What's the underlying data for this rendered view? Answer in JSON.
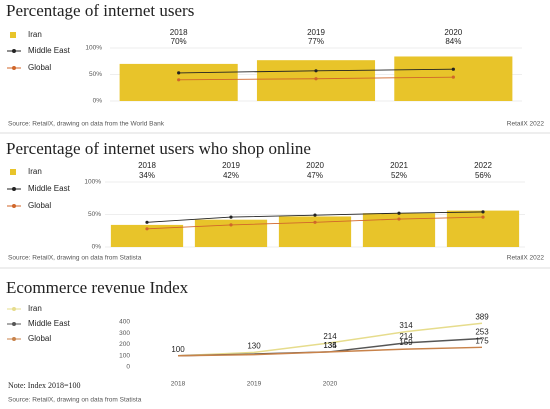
{
  "chart_data": [
    {
      "type": "bar",
      "title": "Percentage of internet users",
      "categories": [
        "2018",
        "2019",
        "2020"
      ],
      "series": [
        {
          "name": "Iran",
          "type": "bar",
          "color": "#e8c42a",
          "values": [
            70,
            77,
            84
          ],
          "value_labels": [
            "70%",
            "77%",
            "84%"
          ]
        },
        {
          "name": "Middle East",
          "type": "line",
          "color": "#222222",
          "values": [
            53,
            57,
            60
          ]
        },
        {
          "name": "Global",
          "type": "line",
          "color": "#d0662a",
          "values": [
            40,
            42,
            45
          ]
        }
      ],
      "ylim": [
        0,
        100
      ],
      "yticks": [
        {
          "value": 0,
          "label": "0%"
        },
        {
          "value": 50,
          "label": "50%"
        },
        {
          "value": 100,
          "label": "100%"
        }
      ],
      "grid": true,
      "source": "Source: RetailX, drawing on data from the World Bank",
      "credit": "RetailX 2022"
    },
    {
      "type": "bar",
      "title": "Percentage of internet users who shop online",
      "categories": [
        "2018",
        "2019",
        "2020",
        "2021",
        "2022"
      ],
      "series": [
        {
          "name": "Iran",
          "type": "bar",
          "color": "#e8c42a",
          "values": [
            34,
            42,
            47,
            52,
            56
          ],
          "value_labels": [
            "34%",
            "42%",
            "47%",
            "52%",
            "56%"
          ]
        },
        {
          "name": "Middle East",
          "type": "line",
          "color": "#222222",
          "values": [
            38,
            46,
            49,
            52,
            54
          ]
        },
        {
          "name": "Global",
          "type": "line",
          "color": "#d0662a",
          "values": [
            28,
            34,
            38,
            43,
            46
          ]
        }
      ],
      "ylim": [
        0,
        100
      ],
      "yticks": [
        {
          "value": 0,
          "label": "0%"
        },
        {
          "value": 50,
          "label": "50%"
        },
        {
          "value": 100,
          "label": "100%"
        }
      ],
      "grid": true,
      "source": "Source: RetailX, drawing on data from Statista",
      "credit": "RetailX 2022"
    },
    {
      "type": "line",
      "title": "Ecommerce revenue Index",
      "categories": [
        "2018",
        "2019",
        "2020",
        null,
        null
      ],
      "series": [
        {
          "name": "Iran",
          "type": "line",
          "color": "#e6dc8c",
          "values": [
            100,
            130,
            214,
            314,
            389
          ],
          "value_labels": [
            "100",
            "130",
            "214",
            "314",
            "389"
          ]
        },
        {
          "name": "Middle East",
          "type": "line",
          "color": "#555555",
          "values": [
            100,
            115,
            135,
            214,
            253
          ],
          "value_labels": [
            null,
            null,
            "135",
            "214",
            "253"
          ]
        },
        {
          "name": "Global",
          "type": "line",
          "color": "#c8824a",
          "values": [
            100,
            110,
            134,
            159,
            175
          ],
          "value_labels": [
            null,
            null,
            "134",
            "159",
            "175"
          ]
        }
      ],
      "ylim": [
        0,
        400
      ],
      "yticks": [
        0,
        100,
        200,
        300,
        400
      ],
      "grid": false,
      "note": "Note: Index 2018=100",
      "source": "Source: RetailX, drawing on data from Statista"
    }
  ]
}
